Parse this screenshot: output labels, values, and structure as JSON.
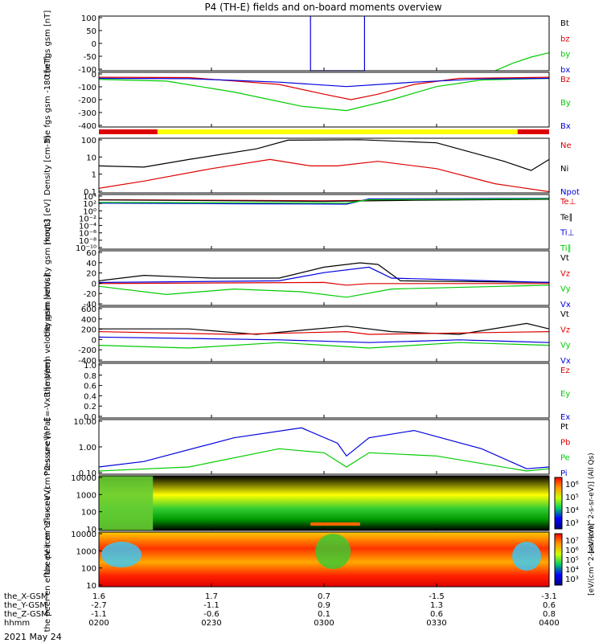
{
  "title": "P4 (TH-E) fields and on-board moments overview",
  "date_label": "2021 May 24",
  "bottom_axis": {
    "row_labels": [
      "the_X-GSM",
      "the_Y-GSM",
      "the_Z-GSM",
      "hhmm"
    ],
    "columns": [
      {
        "values": [
          "1.6",
          "-2.7",
          "-1.1",
          "0200"
        ]
      },
      {
        "values": [
          "1.7",
          "-1.1",
          "-0.6",
          "0230"
        ]
      },
      {
        "values": [
          "0.7",
          "0.9",
          "0.1",
          "0300"
        ]
      },
      {
        "values": [
          "-1.5",
          "1.3",
          "0.6",
          "0330"
        ]
      },
      {
        "values": [
          "-3.1",
          "0.6",
          "0.8",
          "0400"
        ]
      }
    ]
  },
  "colors": {
    "black": "#000000",
    "red": "#dd0000",
    "green": "#00cc00",
    "blue": "#0000dd",
    "yellow": "#ffff00"
  },
  "chart_data": [
    {
      "type": "line",
      "ylabel": "the fgs gsm [nT]",
      "ylim": [
        -100,
        100
      ],
      "ticks": [
        "100",
        "50",
        "0",
        "-50",
        "-100"
      ],
      "legend": [
        {
          "name": "Bt",
          "color": "black"
        },
        {
          "name": "bz",
          "color": "red"
        },
        {
          "name": "by",
          "color": "green"
        },
        {
          "name": "bx",
          "color": "blue"
        }
      ],
      "series": [
        {
          "name": "bx",
          "color": "blue",
          "points": [
            [
              0.47,
              100
            ],
            [
              0.47,
              -100
            ],
            [
              0.59,
              -100
            ],
            [
              0.59,
              100
            ]
          ]
        },
        {
          "name": "by",
          "color": "green",
          "points": [
            [
              0.88,
              -100
            ],
            [
              0.92,
              -72
            ],
            [
              0.96,
              -50
            ],
            [
              1.0,
              -34
            ]
          ]
        }
      ]
    },
    {
      "type": "line",
      "ylabel": "the fgs gsm -180 [nT]",
      "ylim": [
        -450,
        50
      ],
      "ticks": [
        "0",
        "-100",
        "-200",
        "-300",
        "-400"
      ],
      "legend": [
        {
          "name": "Bz",
          "color": "red"
        },
        {
          "name": "By",
          "color": "green"
        },
        {
          "name": "Bx",
          "color": "blue"
        }
      ],
      "series": [
        {
          "name": "Bz",
          "color": "red",
          "points": [
            [
              0,
              5
            ],
            [
              0.2,
              2
            ],
            [
              0.4,
              -60
            ],
            [
              0.5,
              -150
            ],
            [
              0.56,
              -200
            ],
            [
              0.62,
              -150
            ],
            [
              0.7,
              -60
            ],
            [
              0.8,
              -5
            ],
            [
              1,
              5
            ]
          ]
        },
        {
          "name": "By",
          "color": "green",
          "points": [
            [
              0,
              -15
            ],
            [
              0.15,
              -30
            ],
            [
              0.3,
              -130
            ],
            [
              0.45,
              -260
            ],
            [
              0.55,
              -300
            ],
            [
              0.65,
              -200
            ],
            [
              0.75,
              -80
            ],
            [
              0.85,
              -20
            ],
            [
              1,
              -5
            ]
          ]
        },
        {
          "name": "Bx",
          "color": "blue",
          "points": [
            [
              0,
              -5
            ],
            [
              0.2,
              -8
            ],
            [
              0.4,
              -40
            ],
            [
              0.55,
              -80
            ],
            [
              0.7,
              -40
            ],
            [
              0.85,
              -10
            ],
            [
              1,
              -5
            ]
          ]
        }
      ]
    },
    {
      "type": "line",
      "ylabel": "Density [cm-3]",
      "scale": "log",
      "ylim": [
        0.05,
        200
      ],
      "ticks": [
        "100",
        "10",
        "1",
        "0.1"
      ],
      "legend": [
        {
          "name": "Ne",
          "color": "red"
        },
        {
          "name": "Ni",
          "color": "black"
        },
        {
          "name": "Npot",
          "color": "blue"
        }
      ],
      "series": [
        {
          "name": "Ni",
          "color": "black",
          "points": [
            [
              0,
              3
            ],
            [
              0.1,
              2.5
            ],
            [
              0.2,
              8
            ],
            [
              0.35,
              40
            ],
            [
              0.42,
              150
            ],
            [
              0.58,
              160
            ],
            [
              0.75,
              100
            ],
            [
              0.9,
              6
            ],
            [
              0.96,
              1.5
            ],
            [
              1,
              8
            ]
          ]
        },
        {
          "name": "Ne",
          "color": "red",
          "points": [
            [
              0,
              0.1
            ],
            [
              0.1,
              0.3
            ],
            [
              0.25,
              2
            ],
            [
              0.38,
              8
            ],
            [
              0.47,
              3
            ],
            [
              0.53,
              3
            ],
            [
              0.62,
              6
            ],
            [
              0.75,
              2
            ],
            [
              0.88,
              0.2
            ],
            [
              1,
              0.06
            ]
          ]
        }
      ]
    },
    {
      "type": "line",
      "ylabel": "moqt3 [eV]",
      "scale": "log",
      "ylim": [
        1e-11,
        100000.0
      ],
      "ticks": [
        "10⁴",
        "10²",
        "10⁰",
        "10⁻²",
        "10⁻⁴",
        "10⁻⁶",
        "10⁻⁸",
        "10⁻¹⁰"
      ],
      "legend": [
        {
          "name": "Te⊥",
          "color": "red"
        },
        {
          "name": "Te∥",
          "color": "black"
        },
        {
          "name": "Ti⊥",
          "color": "blue"
        },
        {
          "name": "Ti∥",
          "color": "green"
        }
      ],
      "series": [
        {
          "name": "Te⊥",
          "color": "red",
          "points": [
            [
              0,
              3000
            ],
            [
              0.3,
              2000
            ],
            [
              0.5,
              1500
            ],
            [
              0.7,
              2500
            ],
            [
              1,
              5000
            ]
          ]
        },
        {
          "name": "Te∥",
          "color": "black",
          "points": [
            [
              0,
              2500
            ],
            [
              0.3,
              1500
            ],
            [
              0.5,
              1000
            ],
            [
              0.7,
              2000
            ],
            [
              1,
              4000
            ]
          ]
        },
        {
          "name": "Ti⊥",
          "color": "blue",
          "points": [
            [
              0,
              300
            ],
            [
              0.3,
              200
            ],
            [
              0.55,
              150
            ],
            [
              0.6,
              5000
            ],
            [
              1,
              8000
            ]
          ]
        },
        {
          "name": "Ti∥",
          "color": "green",
          "points": [
            [
              0,
              500
            ],
            [
              0.3,
              400
            ],
            [
              0.55,
              300
            ],
            [
              0.6,
              3000
            ],
            [
              1,
              6000
            ]
          ]
        }
      ]
    },
    {
      "type": "line",
      "ylabel": "the peim velocity gsm [km/s]",
      "ylim": [
        -40,
        60
      ],
      "ticks": [
        "60",
        "40",
        "20",
        "0",
        "-20",
        "-40"
      ],
      "legend": [
        {
          "name": "Vt",
          "color": "black"
        },
        {
          "name": "Vz",
          "color": "red"
        },
        {
          "name": "Vy",
          "color": "green"
        },
        {
          "name": "Vx",
          "color": "blue"
        }
      ],
      "series": [
        {
          "name": "Vt",
          "color": "black",
          "points": [
            [
              0,
              5
            ],
            [
              0.1,
              15
            ],
            [
              0.25,
              10
            ],
            [
              0.4,
              10
            ],
            [
              0.5,
              30
            ],
            [
              0.58,
              38
            ],
            [
              0.62,
              35
            ],
            [
              0.67,
              5
            ],
            [
              1,
              2
            ]
          ]
        },
        {
          "name": "Vz",
          "color": "red",
          "points": [
            [
              0,
              0
            ],
            [
              0.5,
              2
            ],
            [
              0.55,
              -3
            ],
            [
              0.6,
              0
            ],
            [
              1,
              0
            ]
          ]
        },
        {
          "name": "Vy",
          "color": "green",
          "points": [
            [
              0,
              -5
            ],
            [
              0.15,
              -20
            ],
            [
              0.3,
              -10
            ],
            [
              0.45,
              -15
            ],
            [
              0.55,
              -25
            ],
            [
              0.65,
              -10
            ],
            [
              1,
              -3
            ]
          ]
        },
        {
          "name": "Vx",
          "color": "blue",
          "points": [
            [
              0,
              2
            ],
            [
              0.4,
              5
            ],
            [
              0.5,
              20
            ],
            [
              0.6,
              30
            ],
            [
              0.65,
              10
            ],
            [
              1,
              2
            ]
          ]
        }
      ]
    },
    {
      "type": "line",
      "ylabel": "the peem velocity gsm [km/s]",
      "ylim": [
        -400,
        600
      ],
      "ticks": [
        "600",
        "400",
        "200",
        "0",
        "-200",
        "-400"
      ],
      "legend": [
        {
          "name": "Vt",
          "color": "black"
        },
        {
          "name": "Vz",
          "color": "red"
        },
        {
          "name": "Vy",
          "color": "green"
        },
        {
          "name": "Vx",
          "color": "blue"
        }
      ],
      "series": [
        {
          "name": "Vt",
          "color": "black",
          "points": [
            [
              0,
              200
            ],
            [
              0.2,
              200
            ],
            [
              0.35,
              100
            ],
            [
              0.55,
              250
            ],
            [
              0.65,
              150
            ],
            [
              0.8,
              100
            ],
            [
              0.95,
              300
            ],
            [
              1,
              200
            ]
          ]
        },
        {
          "name": "Vz",
          "color": "red",
          "points": [
            [
              0,
              150
            ],
            [
              0.3,
              100
            ],
            [
              0.55,
              150
            ],
            [
              0.6,
              100
            ],
            [
              1,
              150
            ]
          ]
        },
        {
          "name": "Vy",
          "color": "green",
          "points": [
            [
              0,
              -100
            ],
            [
              0.2,
              -150
            ],
            [
              0.4,
              -50
            ],
            [
              0.6,
              -150
            ],
            [
              0.8,
              -50
            ],
            [
              1,
              -100
            ]
          ]
        },
        {
          "name": "Vx",
          "color": "blue",
          "points": [
            [
              0,
              50
            ],
            [
              0.4,
              0
            ],
            [
              0.6,
              -50
            ],
            [
              0.8,
              0
            ],
            [
              1,
              -50
            ]
          ]
        }
      ]
    },
    {
      "type": "line",
      "ylabel": "E=-VxB [mV/m]",
      "ylim": [
        0,
        1
      ],
      "ticks": [
        "1.0",
        "0.8",
        "0.6",
        "0.4",
        "0.2",
        "0.0"
      ],
      "legend": [
        {
          "name": "Ez",
          "color": "red"
        },
        {
          "name": "Ey",
          "color": "green"
        },
        {
          "name": "Ex",
          "color": "blue"
        }
      ],
      "series": []
    },
    {
      "type": "line",
      "ylabel": "Pressure [nPa]",
      "scale": "log",
      "ylim": [
        0.02,
        20
      ],
      "ticks": [
        "10.00",
        "1.00",
        "0.10"
      ],
      "legend": [
        {
          "name": "Pt",
          "color": "black"
        },
        {
          "name": "Pb",
          "color": "red"
        },
        {
          "name": "Pe",
          "color": "green"
        },
        {
          "name": "Pi",
          "color": "blue"
        }
      ],
      "series": [
        {
          "name": "Pi",
          "color": "blue",
          "points": [
            [
              0,
              0.05
            ],
            [
              0.1,
              0.1
            ],
            [
              0.3,
              2
            ],
            [
              0.45,
              7
            ],
            [
              0.53,
              1
            ],
            [
              0.55,
              0.2
            ],
            [
              0.6,
              2
            ],
            [
              0.7,
              5
            ],
            [
              0.85,
              0.5
            ],
            [
              0.95,
              0.04
            ],
            [
              1,
              0.05
            ]
          ]
        },
        {
          "name": "Pe",
          "color": "green",
          "points": [
            [
              0,
              0.03
            ],
            [
              0.2,
              0.05
            ],
            [
              0.4,
              0.5
            ],
            [
              0.5,
              0.3
            ],
            [
              0.55,
              0.05
            ],
            [
              0.6,
              0.3
            ],
            [
              0.75,
              0.2
            ],
            [
              0.95,
              0.03
            ],
            [
              1,
              0.04
            ]
          ]
        }
      ]
    },
    {
      "type": "heatmap",
      "ylabel": "the peir en eflux eV (cm^2-s-sr-eV)",
      "scale": "log",
      "ylim": [
        5,
        20000
      ],
      "ticks": [
        "10000",
        "1000",
        "100",
        "10"
      ],
      "colorbar": {
        "ticks": [
          "10⁶",
          "10⁵",
          "10⁴",
          "10³"
        ],
        "label": "[eV/(cm^2-s-sr-eV)] (All Qs)"
      }
    },
    {
      "type": "heatmap",
      "ylabel": "the peer en eflux eV (cm^2-s-sr-eV)",
      "scale": "log",
      "ylim": [
        5,
        20000
      ],
      "ticks": [
        "10000",
        "1000",
        "100",
        "10"
      ],
      "colorbar": {
        "ticks": [
          "10⁷",
          "10⁶",
          "10⁵",
          "10⁴",
          "10³"
        ],
        "label": "[eV/(cm^2-s-sr-eV)]"
      }
    }
  ]
}
